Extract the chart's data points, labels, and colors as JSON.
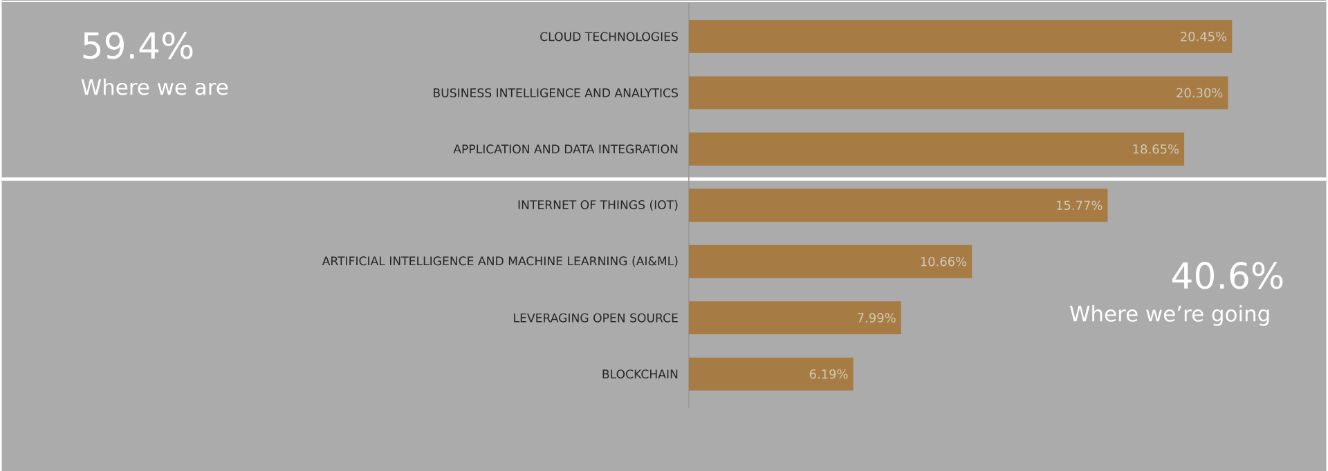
{
  "chart_data": {
    "type": "bar",
    "orientation": "horizontal",
    "categories": [
      "CLOUD TECHNOLOGIES",
      "BUSINESS INTELLIGENCE AND ANALYTICS",
      "APPLICATION AND DATA INTEGRATION",
      "INTERNET OF THINGS (IOT)",
      "ARTIFICIAL INTELLIGENCE AND MACHINE LEARNING (AI&ML)",
      "LEVERAGING OPEN SOURCE",
      "BLOCKCHAIN"
    ],
    "values": [
      20.45,
      20.3,
      18.65,
      15.77,
      10.66,
      7.99,
      6.19
    ],
    "value_labels": [
      "20.45%",
      "20.30%",
      "18.65%",
      "15.77%",
      "10.66%",
      "7.99%",
      "6.19%"
    ],
    "color": "#a67c44",
    "xlim": [
      0,
      24
    ],
    "tick_labels": "y",
    "annotations": [
      "59.4%",
      "Where we are",
      "40.6%",
      "Where we’re going"
    ]
  }
}
